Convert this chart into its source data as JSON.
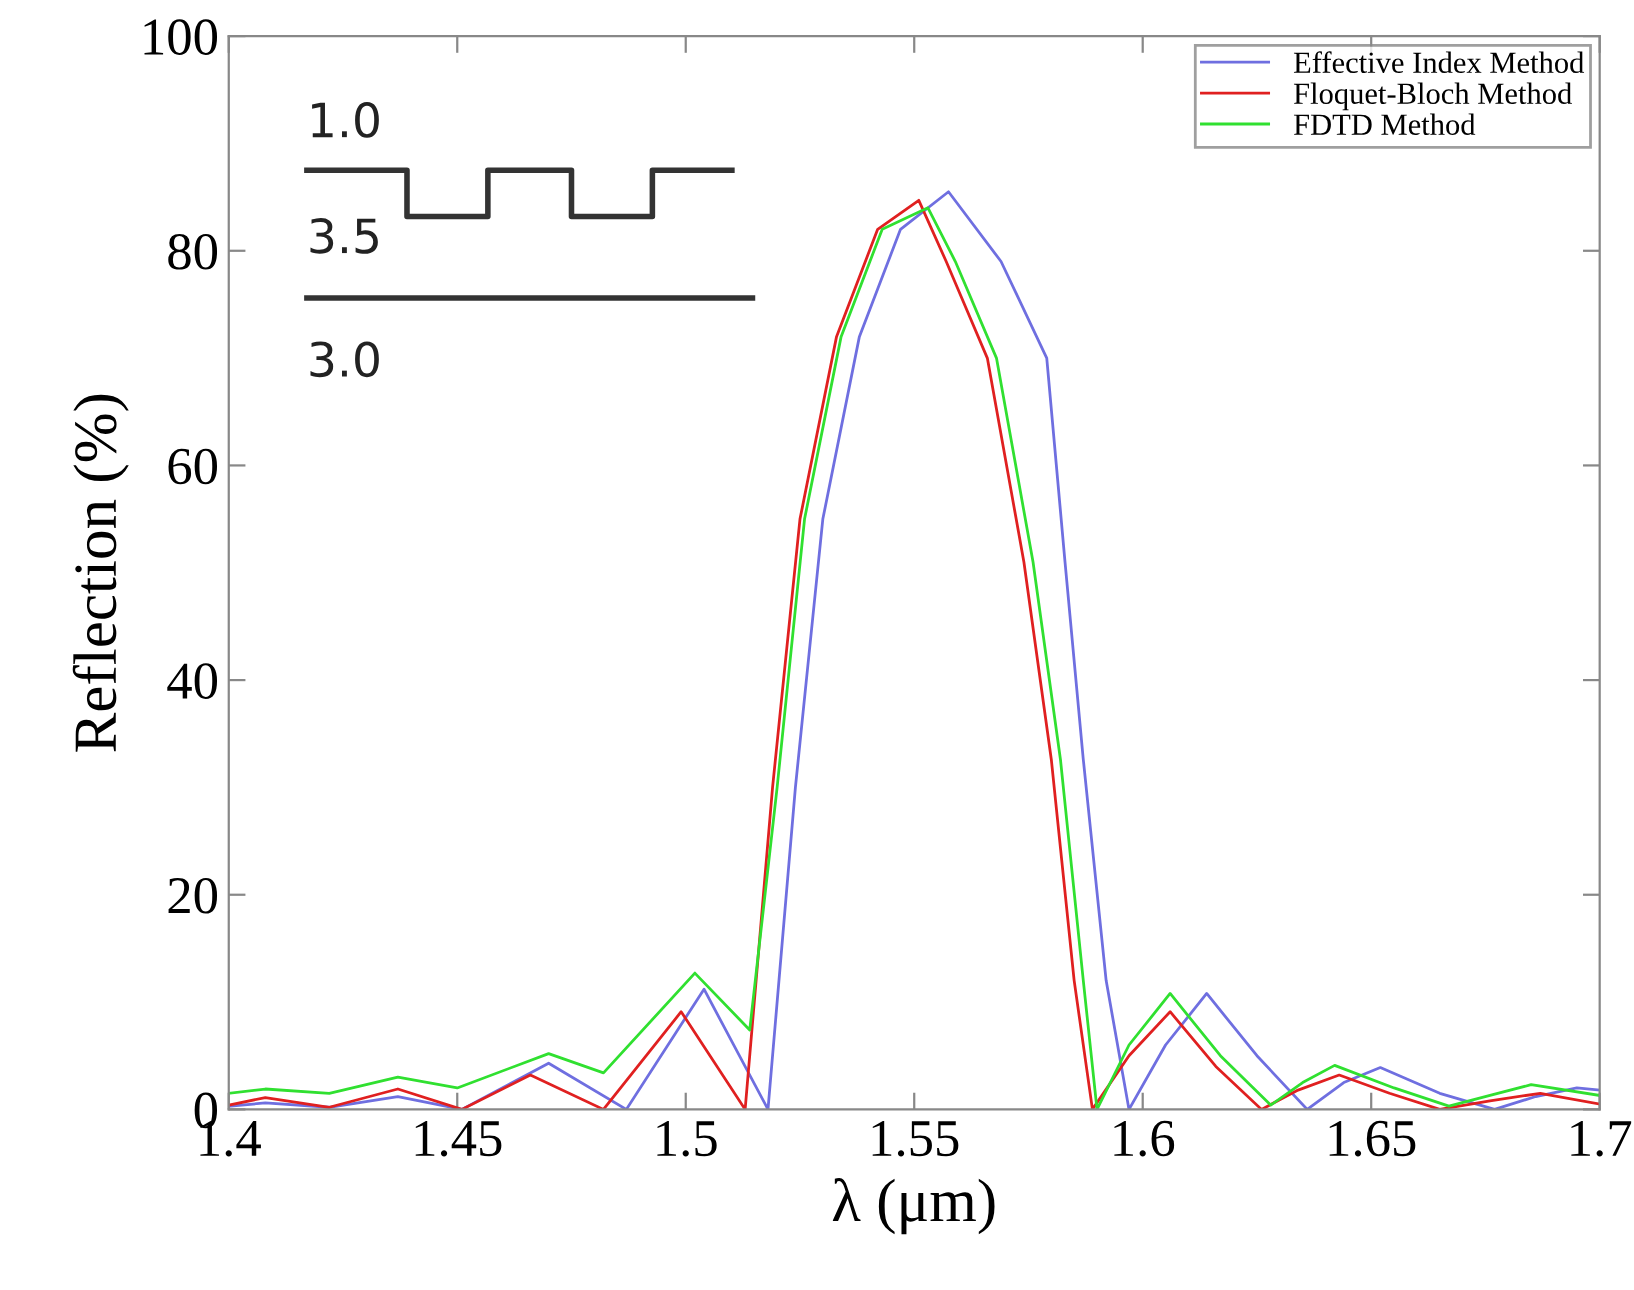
{
  "chart_data": {
    "type": "line",
    "xlabel": "λ (μm)",
    "ylabel": "Reflection (%)",
    "xlim": [
      1.4,
      1.7
    ],
    "xticks": [
      1.4,
      1.45,
      1.5,
      1.55,
      1.6,
      1.65,
      1.7
    ],
    "ylim": [
      0,
      100
    ],
    "yticks": [
      0,
      20,
      40,
      60,
      80,
      100
    ],
    "grid": false,
    "legend": "top right",
    "marker": "none",
    "line_style": "solid",
    "annotations": [
      "1.0",
      "3.5",
      "3.0"
    ],
    "series": [
      {
        "name": "Effective Index Method",
        "color": "#6f6fe0",
        "x": [
          1.4,
          1.408,
          1.422,
          1.437,
          1.451,
          1.47,
          1.487,
          1.504,
          1.518,
          1.524,
          1.53,
          1.538,
          1.547,
          1.5575,
          1.569,
          1.579,
          1.583,
          1.587,
          1.592,
          1.597,
          1.605,
          1.614,
          1.625,
          1.636,
          1.644,
          1.652,
          1.665,
          1.677,
          1.686,
          1.695,
          1.7
        ],
        "values": [
          0.3,
          0.6,
          0.2,
          1.2,
          0,
          4.3,
          0,
          11.2,
          0,
          30,
          55,
          72,
          82,
          85.5,
          79,
          70,
          51,
          32.6,
          12,
          0,
          6,
          10.8,
          5,
          0,
          2.5,
          3.9,
          1.5,
          0,
          1.2,
          2.0,
          1.8
        ]
      },
      {
        "name": "Floquet-Bloch Method",
        "color": "#e02020",
        "x": [
          1.4,
          1.408,
          1.422,
          1.437,
          1.451,
          1.466,
          1.482,
          1.499,
          1.513,
          1.519,
          1.525,
          1.533,
          1.542,
          1.551,
          1.557,
          1.566,
          1.574,
          1.58,
          1.585,
          1.589,
          1.597,
          1.606,
          1.616,
          1.626,
          1.634,
          1.643,
          1.654,
          1.665,
          1.676,
          1.687,
          1.7
        ],
        "values": [
          0.4,
          1.1,
          0.2,
          1.9,
          0,
          3.2,
          0,
          9.1,
          0,
          30,
          55,
          72,
          82,
          84.7,
          79,
          70,
          51,
          32.6,
          12,
          0,
          5,
          9.1,
          4,
          0,
          1.8,
          3.2,
          1.5,
          0,
          0.8,
          1.5,
          0.5
        ]
      },
      {
        "name": "FDTD Method",
        "color": "#30e030",
        "x": [
          1.4,
          1.408,
          1.422,
          1.437,
          1.45,
          1.47,
          1.482,
          1.502,
          1.514,
          1.52,
          1.526,
          1.534,
          1.543,
          1.553,
          1.559,
          1.568,
          1.576,
          1.582,
          1.587,
          1.59,
          1.597,
          1.606,
          1.617,
          1.628,
          1.635,
          1.642,
          1.655,
          1.667,
          1.676,
          1.685,
          1.7
        ],
        "values": [
          1.5,
          1.9,
          1.5,
          3.0,
          2.0,
          5.2,
          3.4,
          12.7,
          7.4,
          30,
          55,
          72,
          82,
          84,
          79,
          70,
          51,
          32.6,
          12,
          0,
          6,
          10.8,
          5,
          0.4,
          2.5,
          4.1,
          2,
          0.3,
          1.3,
          2.3,
          1.3
        ]
      }
    ]
  }
}
